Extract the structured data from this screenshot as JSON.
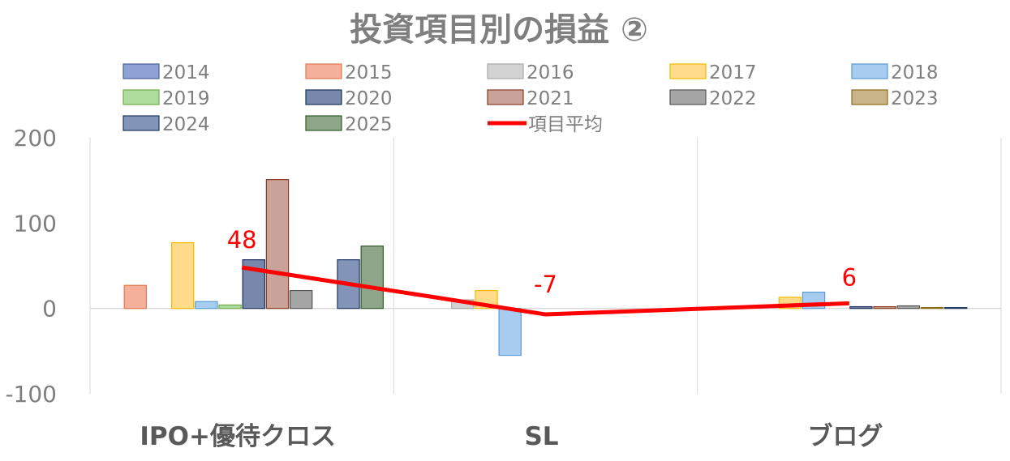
{
  "chart_data": {
    "type": "bar",
    "title": "投資項目別の損益 ②",
    "categories": [
      "IPO+優待クロス",
      "SL",
      "ブログ"
    ],
    "ylim": [
      -100,
      200
    ],
    "yticks": [
      -100,
      0,
      100,
      200
    ],
    "grid": "vertical separators between categories",
    "legend_position": "top",
    "series": [
      {
        "name": "2014",
        "values": [
          0,
          0,
          0
        ],
        "color": "#8EA2D6",
        "stroke": "#4A5E9E"
      },
      {
        "name": "2015",
        "values": [
          27,
          0,
          0
        ],
        "color": "#F4B09A",
        "stroke": "#E07850"
      },
      {
        "name": "2016",
        "values": [
          0,
          10,
          0
        ],
        "color": "#D3D3D3",
        "stroke": "#A8A8A8"
      },
      {
        "name": "2017",
        "values": [
          77,
          21,
          13
        ],
        "color": "#FFDB8A",
        "stroke": "#F5B800"
      },
      {
        "name": "2018",
        "values": [
          8,
          -55,
          19
        ],
        "color": "#A8CBF0",
        "stroke": "#5B9BD5"
      },
      {
        "name": "2019",
        "values": [
          4,
          0,
          0
        ],
        "color": "#AEDC9C",
        "stroke": "#70AD47"
      },
      {
        "name": "2020",
        "values": [
          57,
          0,
          2
        ],
        "color": "#7887AC",
        "stroke": "#1F3060"
      },
      {
        "name": "2021",
        "values": [
          151,
          0,
          2
        ],
        "color": "#C9A39A",
        "stroke": "#8B3A1E"
      },
      {
        "name": "2022",
        "values": [
          21,
          0,
          3
        ],
        "color": "#A5A5A5",
        "stroke": "#555555"
      },
      {
        "name": "2023",
        "values": [
          0,
          0,
          1
        ],
        "color": "#C9B48A",
        "stroke": "#8A6A10"
      },
      {
        "name": "2024",
        "values": [
          57,
          0,
          1
        ],
        "color": "#8294B8",
        "stroke": "#1F3864"
      },
      {
        "name": "2025",
        "values": [
          73,
          0,
          0
        ],
        "color": "#8FA58A",
        "stroke": "#2F5A28"
      }
    ],
    "line_series": {
      "name": "項目平均",
      "values": [
        48,
        -7,
        6
      ],
      "labels": [
        "48",
        "-7",
        "6"
      ],
      "color": "#FF0000"
    }
  }
}
